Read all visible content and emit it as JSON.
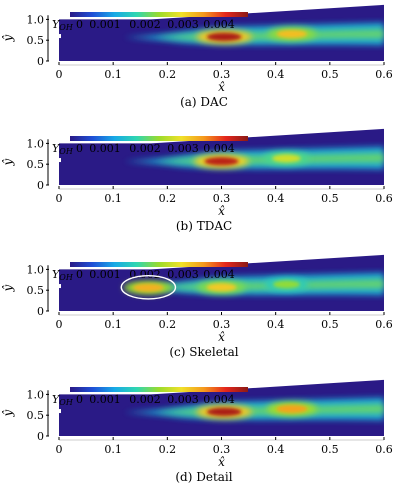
{
  "colormap": {
    "stops": [
      "#2a1a86",
      "#1f4fd6",
      "#18a9e6",
      "#2fd6b0",
      "#9bdb2c",
      "#f0e12a",
      "#f59a1d",
      "#e4261c",
      "#8a1a16"
    ]
  },
  "chart_data": [
    {
      "type": "heatmap",
      "caption": "(a) DAC",
      "xlabel": "x̂",
      "ylabel": "ŷ",
      "xlim": [
        0,
        0.6
      ],
      "ylim": [
        0,
        1.1
      ],
      "xticks": [
        "0",
        "0.1",
        "0.2",
        "0.3",
        "0.4",
        "0.5",
        "0.6"
      ],
      "yticks": [
        "0",
        "0.5",
        "1.0"
      ],
      "colorbar": {
        "label": "Y",
        "label_sub": "OH",
        "ticks": [
          "0",
          "0.001",
          "0.002",
          "0.003",
          "0.004"
        ],
        "range": [
          0,
          0.0045
        ]
      },
      "domain_top": {
        "x": [
          0,
          0.17,
          0.6
        ],
        "y": [
          1.0,
          1.0,
          1.35
        ]
      },
      "hot_spots": [
        {
          "x": 0.305,
          "y": 0.58,
          "value": 0.0043
        },
        {
          "x": 0.43,
          "y": 0.65,
          "value": 0.0031
        }
      ]
    },
    {
      "type": "heatmap",
      "caption": "(b) TDAC",
      "xlabel": "x̂",
      "ylabel": "ŷ",
      "xlim": [
        0,
        0.6
      ],
      "ylim": [
        0,
        1.1
      ],
      "xticks": [
        "0",
        "0.1",
        "0.2",
        "0.3",
        "0.4",
        "0.5",
        "0.6"
      ],
      "yticks": [
        "0",
        "0.5",
        "1.0"
      ],
      "colorbar": {
        "label": "Y",
        "label_sub": "OH",
        "ticks": [
          "0",
          "0.001",
          "0.002",
          "0.003",
          "0.004"
        ],
        "range": [
          0,
          0.0045
        ]
      },
      "domain_top": {
        "x": [
          0,
          0.17,
          0.6
        ],
        "y": [
          1.0,
          1.0,
          1.35
        ]
      },
      "hot_spots": [
        {
          "x": 0.3,
          "y": 0.57,
          "value": 0.0042
        },
        {
          "x": 0.42,
          "y": 0.64,
          "value": 0.0026
        }
      ]
    },
    {
      "type": "heatmap",
      "caption": "(c) Skeletal",
      "xlabel": "x̂",
      "ylabel": "ŷ",
      "xlim": [
        0,
        0.6
      ],
      "ylim": [
        0,
        1.1
      ],
      "xticks": [
        "0",
        "0.1",
        "0.2",
        "0.3",
        "0.4",
        "0.5",
        "0.6"
      ],
      "yticks": [
        "0",
        "0.5",
        "1.0"
      ],
      "colorbar": {
        "label": "Y",
        "label_sub": "OH",
        "ticks": [
          "0",
          "0.001",
          "0.002",
          "0.003",
          "0.004"
        ],
        "range": [
          0,
          0.0045
        ]
      },
      "domain_top": {
        "x": [
          0,
          0.17,
          0.6
        ],
        "y": [
          1.0,
          1.0,
          1.35
        ]
      },
      "hot_spots": [
        {
          "x": 0.165,
          "y": 0.56,
          "value": 0.0032
        },
        {
          "x": 0.3,
          "y": 0.57,
          "value": 0.003
        },
        {
          "x": 0.42,
          "y": 0.64,
          "value": 0.0022
        }
      ],
      "annotation": {
        "shape": "ellipse",
        "cx": 0.165,
        "cy": 0.57,
        "rx": 0.05,
        "ry": 0.28
      }
    },
    {
      "type": "heatmap",
      "caption": "(d) Detail",
      "xlabel": "x̂",
      "ylabel": "ŷ",
      "xlim": [
        0,
        0.6
      ],
      "ylim": [
        0,
        1.1
      ],
      "xticks": [
        "0",
        "0.1",
        "0.2",
        "0.3",
        "0.4",
        "0.5",
        "0.6"
      ],
      "yticks": [
        "0",
        "0.5",
        "1.0"
      ],
      "colorbar": {
        "label": "Y",
        "label_sub": "OH",
        "ticks": [
          "0",
          "0.001",
          "0.002",
          "0.003",
          "0.004"
        ],
        "range": [
          0,
          0.0045
        ]
      },
      "domain_top": {
        "x": [
          0,
          0.17,
          0.6
        ],
        "y": [
          1.0,
          1.0,
          1.35
        ]
      },
      "hot_spots": [
        {
          "x": 0.305,
          "y": 0.58,
          "value": 0.0043
        },
        {
          "x": 0.43,
          "y": 0.65,
          "value": 0.0033
        }
      ]
    }
  ]
}
